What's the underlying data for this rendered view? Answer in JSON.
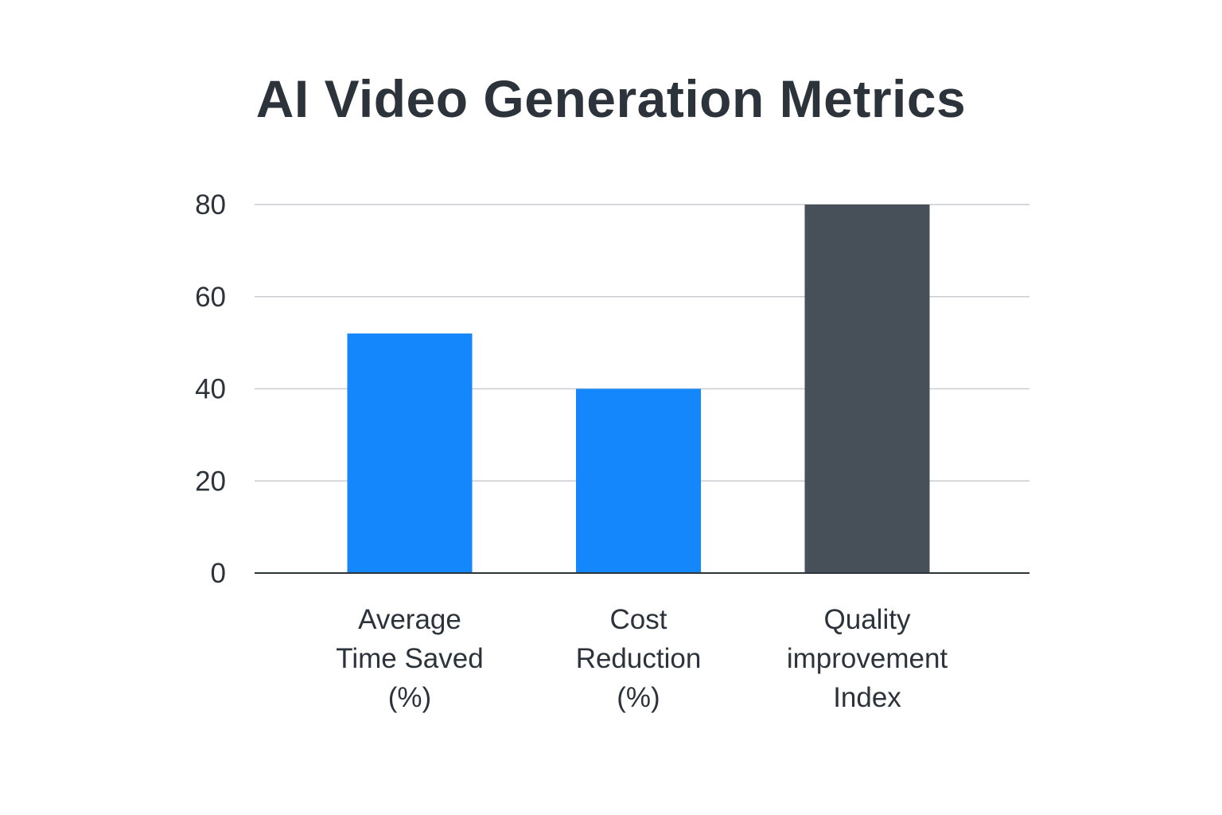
{
  "chart_data": {
    "type": "bar",
    "title": "AI Video Generation Metrics",
    "xlabel": "",
    "ylabel": "",
    "categories": [
      [
        "Average",
        "Time Saved",
        "(%)"
      ],
      [
        "Cost",
        "Reduction",
        "(%)"
      ],
      [
        "Quality",
        "improvement",
        "Index"
      ]
    ],
    "values": [
      52,
      40,
      80
    ],
    "colors": [
      "#1487fc",
      "#1487fc",
      "#474f59"
    ],
    "ylim": [
      0,
      80
    ],
    "yticks": [
      0,
      20,
      40,
      60,
      80
    ],
    "grid": true,
    "legend": "none"
  }
}
